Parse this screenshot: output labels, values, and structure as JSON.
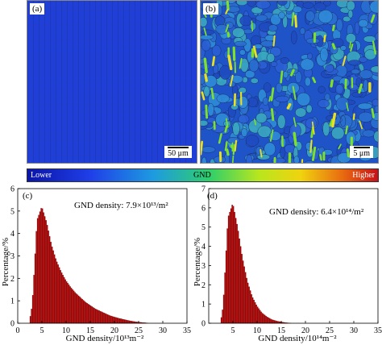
{
  "maps": {
    "a": {
      "tag": "(a)",
      "scale_label": "50 μm"
    },
    "b": {
      "tag": "(b)",
      "scale_label": "5 μm"
    }
  },
  "colorbar": {
    "low_label": "Lower",
    "mid_label": "GND",
    "high_label": "Higher"
  },
  "chart_data": [
    {
      "type": "bar",
      "panel_tag": "(c)",
      "annotation": "GND density: 7.9×10¹³/m²",
      "xlabel": "GND density/10¹³m⁻²",
      "ylabel": "Percentage/%",
      "xlim": [
        0,
        35
      ],
      "ylim": [
        0,
        6
      ],
      "xticks": [
        0,
        5,
        10,
        15,
        20,
        25,
        30,
        35
      ],
      "yticks": [
        0,
        1,
        2,
        3,
        4,
        5,
        6
      ],
      "bin_width": 0.25,
      "peak": 5.0,
      "x_max": 27,
      "values": [
        0.15,
        0.8,
        2.6,
        4.6,
        5.2,
        4.5,
        3.5,
        2.8,
        2.3,
        1.9,
        1.6,
        1.35,
        1.15,
        0.95,
        0.8,
        0.65,
        0.55,
        0.45,
        0.35,
        0.28,
        0.22,
        0.17,
        0.12,
        0.08,
        0.05,
        0.03,
        0.01
      ],
      "value_x": [
        2.5,
        3,
        3.5,
        4,
        5,
        6,
        7,
        8,
        9,
        10,
        11,
        12,
        13,
        14,
        15,
        16,
        17,
        18,
        19,
        20,
        21,
        22,
        23,
        24,
        25,
        26,
        27
      ],
      "bar_color": "#b40000"
    },
    {
      "type": "bar",
      "panel_tag": "(d)",
      "annotation": "GND density: 6.4×10¹⁴/m²",
      "xlabel": "GND density/10¹⁴m⁻²",
      "ylabel": "Percentage/%",
      "xlim": [
        0,
        35
      ],
      "ylim": [
        0,
        7
      ],
      "xticks": [
        5,
        10,
        15,
        20,
        25,
        30,
        35
      ],
      "yticks": [
        0,
        1,
        2,
        3,
        4,
        5,
        6,
        7
      ],
      "bin_width": 0.25,
      "peak": 5.0,
      "x_max": 17,
      "values": [
        0.1,
        0.9,
        3.2,
        5.5,
        6.25,
        5.0,
        3.4,
        2.2,
        1.4,
        0.9,
        0.55,
        0.35,
        0.2,
        0.12,
        0.07,
        0.03,
        0.01
      ],
      "value_x": [
        2.5,
        3,
        3.5,
        4,
        5,
        6,
        7,
        8,
        9,
        10,
        11,
        12,
        13,
        14,
        15,
        16,
        17
      ],
      "bar_color": "#b40000"
    }
  ]
}
